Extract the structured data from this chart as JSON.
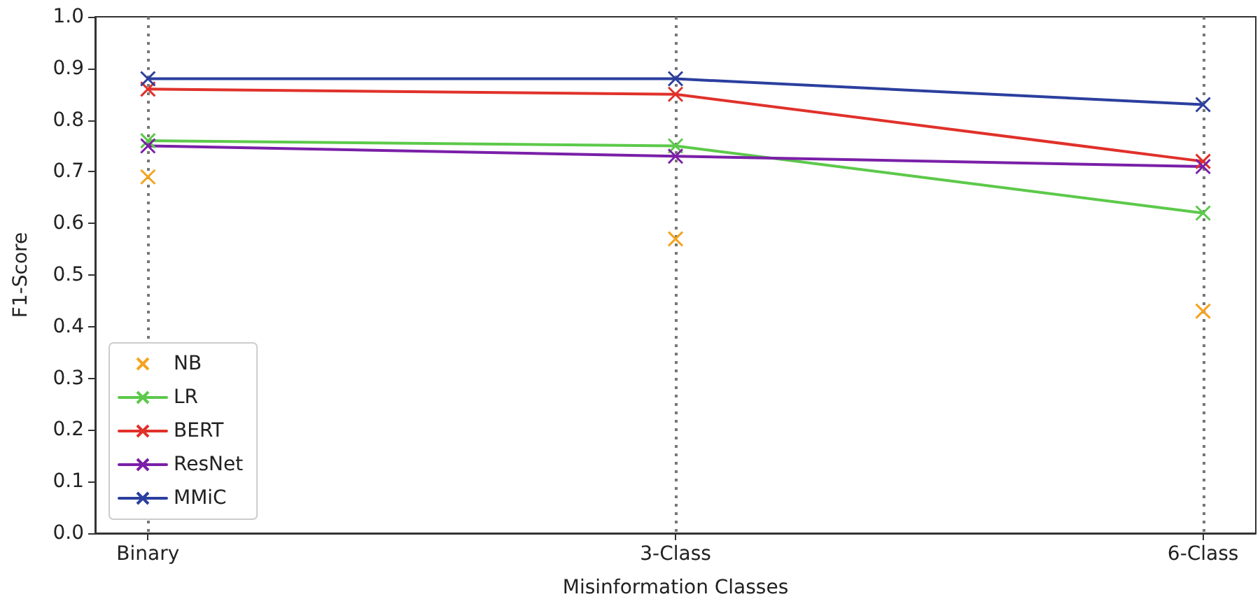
{
  "chart_data": {
    "type": "line",
    "xlabel": "Misinformation Classes",
    "ylabel": "F1-Score",
    "categories": [
      "Binary",
      "3-Class",
      "6-Class"
    ],
    "series": [
      {
        "name": "NB",
        "type": "scatter",
        "color": "#f5a31f",
        "values": [
          0.69,
          0.57,
          0.43
        ]
      },
      {
        "name": "LR",
        "color": "#5cc94a",
        "values": [
          0.76,
          0.75,
          0.62
        ]
      },
      {
        "name": "BERT",
        "color": "#e0312a",
        "values": [
          0.86,
          0.85,
          0.72
        ]
      },
      {
        "name": "ResNet",
        "color": "#7a1fa8",
        "values": [
          0.75,
          0.73,
          0.71
        ]
      },
      {
        "name": "MMiC",
        "color": "#2b3f9e",
        "values": [
          0.88,
          0.88,
          0.83
        ]
      }
    ],
    "ylim": [
      0,
      1
    ],
    "yticks": [
      {
        "value": 0,
        "label": "0.0"
      },
      {
        "value": 0.1,
        "label": "0.1"
      },
      {
        "value": 0.2,
        "label": "0.2"
      },
      {
        "value": 0.3,
        "label": "0.3"
      },
      {
        "value": 0.4,
        "label": "0.4"
      },
      {
        "value": 0.5,
        "label": "0.5"
      },
      {
        "value": 0.6,
        "label": "0.6"
      },
      {
        "value": 0.7,
        "label": "0.7"
      },
      {
        "value": 0.8,
        "label": "0.8"
      },
      {
        "value": 0.9,
        "label": "0.9"
      },
      {
        "value": 1,
        "label": "1.0"
      }
    ],
    "grid": "x",
    "legend": "bottom left",
    "marker": "cross",
    "line_style": "solid"
  }
}
